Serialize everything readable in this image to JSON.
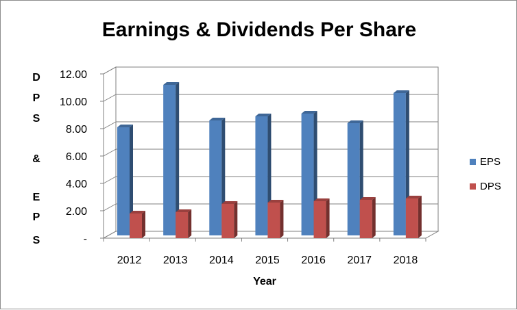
{
  "chart_data": {
    "type": "bar",
    "title": "Earnings & Dividends Per Share",
    "xlabel": "Year",
    "ylabel_letters": [
      "D",
      "P",
      "S",
      "&",
      "E",
      "P",
      "S"
    ],
    "categories": [
      "2012",
      "2013",
      "2014",
      "2015",
      "2016",
      "2017",
      "2018"
    ],
    "series": [
      {
        "name": "EPS",
        "values": [
          7.9,
          11.0,
          8.4,
          8.7,
          8.9,
          8.2,
          10.4
        ],
        "color": "#4f81bd"
      },
      {
        "name": "DPS",
        "values": [
          1.8,
          1.9,
          2.5,
          2.6,
          2.7,
          2.8,
          2.9
        ],
        "color": "#c0504d"
      }
    ],
    "ylim": [
      0,
      12
    ],
    "yticks": [
      0,
      2,
      4,
      6,
      8,
      10,
      12
    ],
    "ytick_labels": [
      "-",
      "2.00",
      "4.00",
      "6.00",
      "8.00",
      "10.00",
      "12.00"
    ],
    "grid": true,
    "legend_position": "right"
  }
}
